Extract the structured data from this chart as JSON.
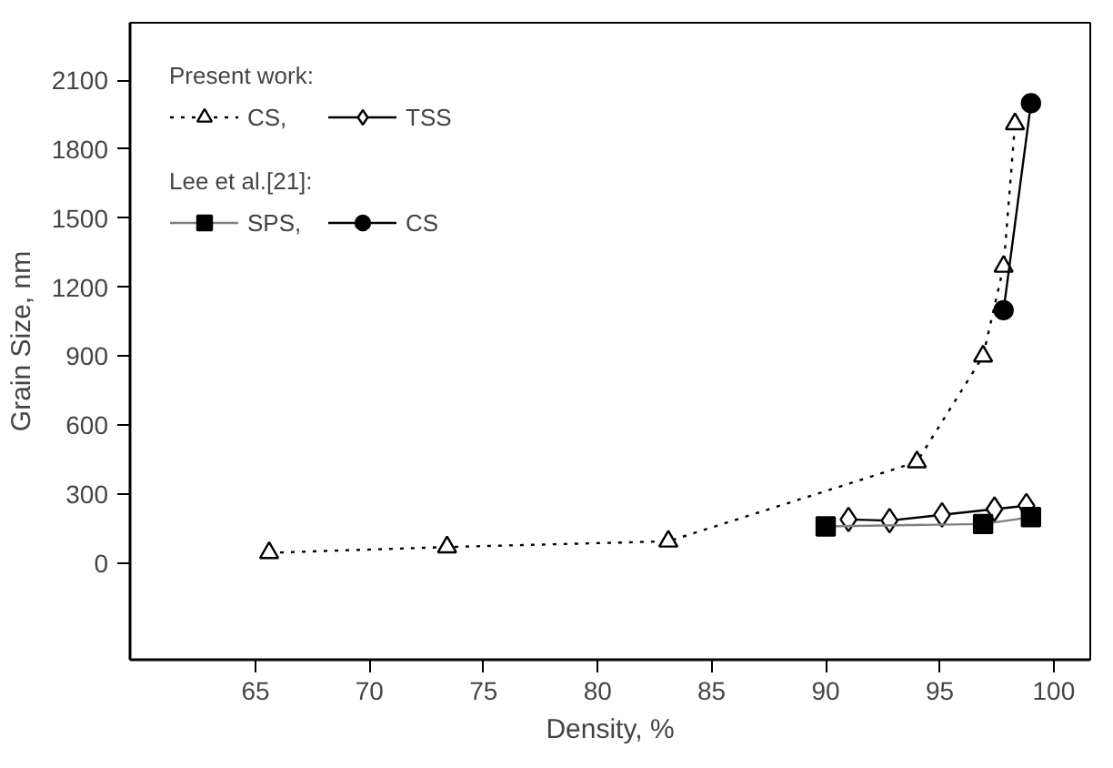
{
  "chart_data": {
    "type": "line",
    "xlabel": "Density, %",
    "ylabel": "Grain Size, nm",
    "xlim": [
      59.5,
      101.6
    ],
    "ylim": [
      -420,
      2350
    ],
    "xticks": [
      65,
      70,
      75,
      80,
      85,
      90,
      95,
      100
    ],
    "yticks": [
      0,
      300,
      600,
      900,
      1200,
      1500,
      1800,
      2100
    ],
    "grid": false,
    "legend": "top left",
    "annotations": [
      "Present work:",
      "Lee et al.[21]:"
    ],
    "series": [
      {
        "name": "CS,",
        "color": "#000000",
        "marker": "triangle",
        "line_style": "dotted",
        "x": [
          65.6,
          73.4,
          83.1,
          94.0,
          96.9,
          97.8,
          98.3
        ],
        "values": [
          45,
          70,
          95,
          440,
          900,
          1290,
          1910
        ]
      },
      {
        "name": "TSS",
        "color": "#000000",
        "marker": "diamond",
        "line_style": "solid",
        "x": [
          91.0,
          92.8,
          95.1,
          97.4,
          98.8
        ],
        "values": [
          190,
          185,
          210,
          235,
          250
        ]
      },
      {
        "name": "SPS,",
        "color": "#808080",
        "marker": "square",
        "line_style": "solid",
        "x": [
          90.0,
          96.9,
          99.0
        ],
        "values": [
          160,
          170,
          200
        ]
      },
      {
        "name": "CS",
        "color": "#000000",
        "marker": "circle",
        "line_style": "solid",
        "x": [
          97.8,
          99.0
        ],
        "values": [
          1100,
          2000
        ]
      }
    ]
  }
}
